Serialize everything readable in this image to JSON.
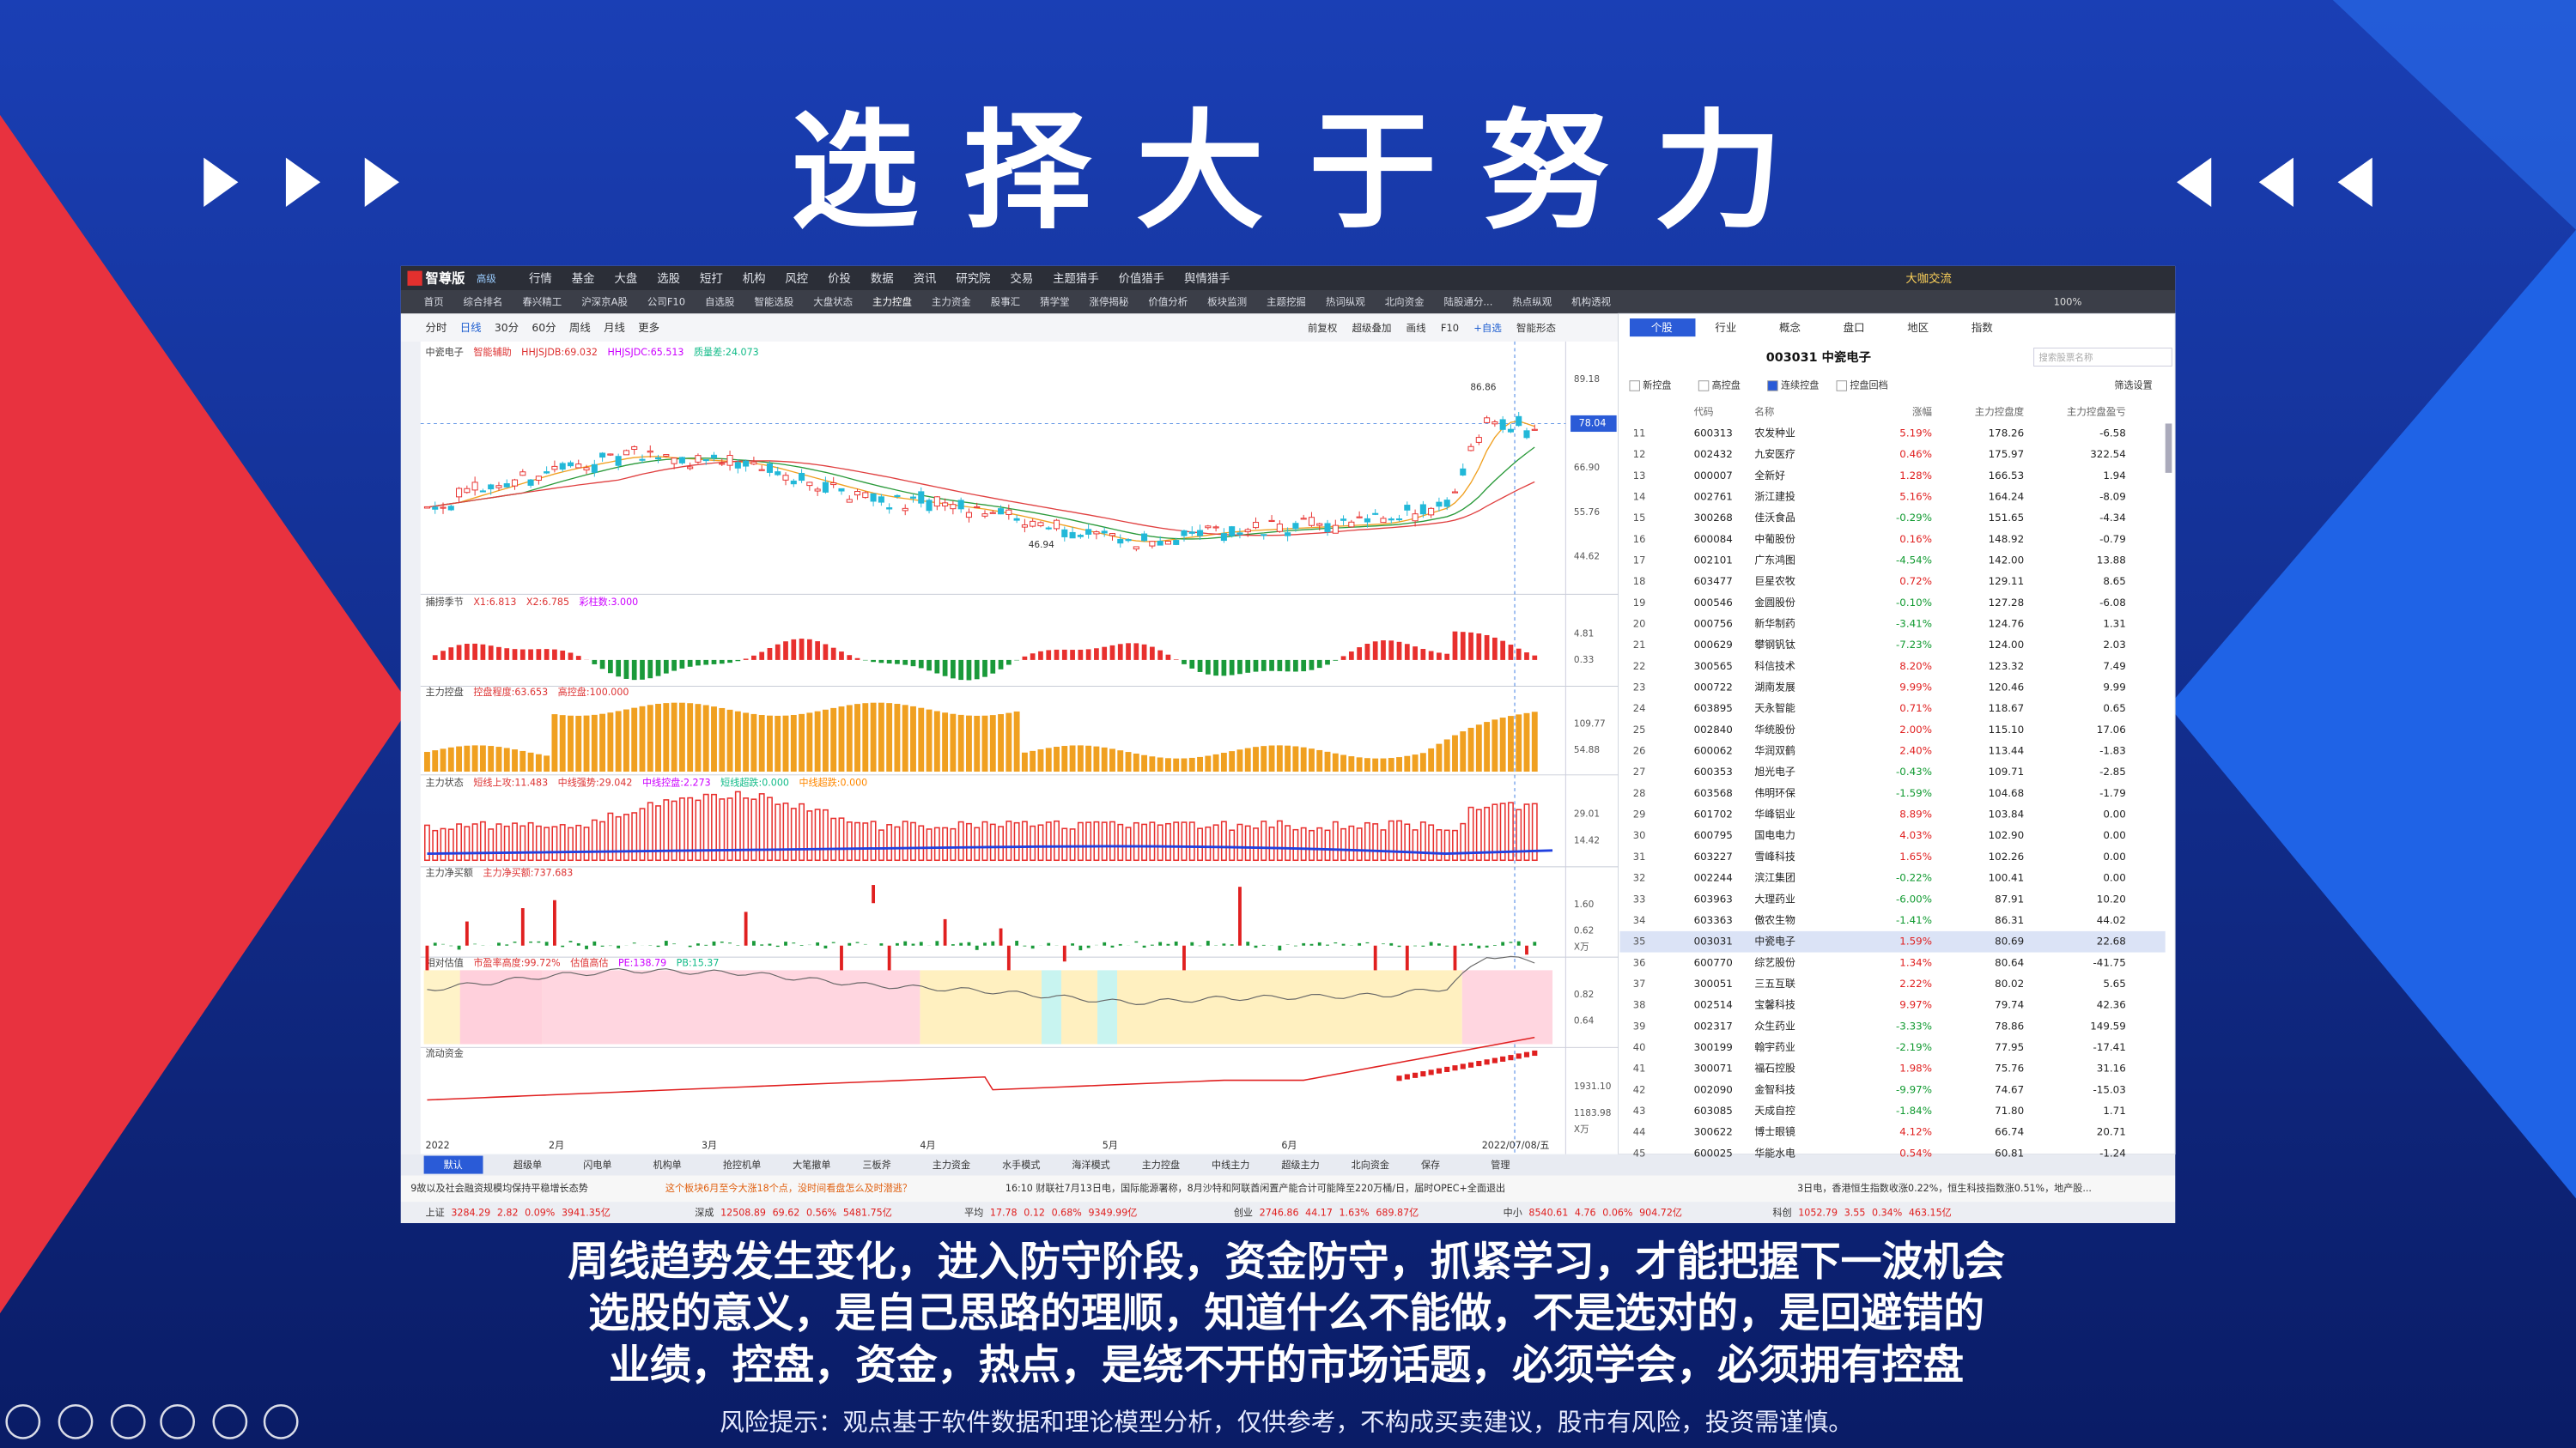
{
  "slide": {
    "title": "选 择 大 于 努 力",
    "captions": [
      "周线趋势发生变化，进入防守阶段，资金防守，抓紧学习，才能把握下一波机会",
      "选股的意义，是自己思路的理顺，知道什么不能做，不是选对的，是回避错的",
      "业绩，控盘，资金，热点，是绕不开的市场话题，必须学会，必须拥有控盘"
    ],
    "risk_notice": "风险提示：观点基于软件数据和理论模型分析，仅供参考，不构成买卖建议，股市有风险，投资需谨慎。"
  },
  "app": {
    "logo": "智尊版",
    "badge": "高级",
    "menu": [
      "行情",
      "基金",
      "大盘",
      "选股",
      "短打",
      "机构",
      "风控",
      "价投",
      "数据",
      "资讯",
      "研究院",
      "交易",
      "主题猎手",
      "价值猎手",
      "舆情猎手"
    ],
    "top_right": "大咖交流",
    "tabs": [
      "首页",
      "综合排名",
      "春兴精工",
      "沪深京A股",
      "公司F10",
      "自选股",
      "智能选股",
      "大盘状态",
      "主力控盘",
      "主力资金",
      "股事汇",
      "猜学堂",
      "涨停揭秘",
      "价值分析",
      "板块监测",
      "主题挖掘",
      "热词纵观",
      "北向资金",
      "陆股通分...",
      "热点纵观",
      "机构透视"
    ],
    "zoom": "100%"
  },
  "toolbar": {
    "periods": [
      "分时",
      "日线",
      "30分",
      "60分",
      "周线",
      "月线",
      "更多"
    ],
    "tools": [
      "前复权",
      "超级叠加",
      "画线",
      "F10",
      "+自选",
      "智能形态"
    ]
  },
  "chart": {
    "panels": [
      {
        "labels": [
          "中瓷电子",
          "智能辅助",
          "HHJSJDB:69.032",
          "HHJSJDC:65.513",
          "质量差:24.073"
        ],
        "axis": [
          "89.18",
          "78.04",
          "66.90",
          "55.76",
          "44.62"
        ]
      },
      {
        "labels": [
          "捕捞季节",
          "X1:6.813",
          "X2:6.785",
          "彩柱数:3.000"
        ],
        "axis": [
          "4.81",
          "0.33"
        ]
      },
      {
        "labels": [
          "主力控盘",
          "控盘程度:63.653",
          "高控盘:100.000"
        ],
        "axis": [
          "109.77",
          "54.88"
        ]
      },
      {
        "labels": [
          "主力状态",
          "短线上攻:11.483",
          "中线强势:29.042",
          "中线控盘:2.273",
          "短线超跌:0.000",
          "中线超跌:0.000"
        ],
        "axis": [
          "29.01",
          "14.42"
        ]
      },
      {
        "labels": [
          "主力净买额",
          "主力净买额:737.683"
        ],
        "axis": [
          "1.60",
          "0.62",
          "X万"
        ]
      },
      {
        "labels": [
          "相对估值",
          "市盈率高度:99.72%",
          "估值高估",
          "PE:138.79",
          "PB:15.37"
        ],
        "axis": [
          "0.82",
          "0.64"
        ]
      },
      {
        "labels": [
          "流动资金"
        ],
        "axis": [
          "1931.10",
          "1183.98",
          "X万"
        ]
      }
    ],
    "high_mark": "86.86",
    "low_mark": "46.94",
    "x_labels": [
      "2022",
      "2月",
      "3月",
      "4月",
      "5月",
      "6月",
      "2022/07/08/五"
    ],
    "bottom_tabs": [
      "默认",
      "超级单",
      "闪电单",
      "机构单",
      "抢控机单",
      "大笔撤单",
      "三板斧",
      "主力资金",
      "水手模式",
      "海洋模式",
      "主力控盘",
      "中线主力",
      "超级主力",
      "北向资金",
      "保存",
      "管理"
    ]
  },
  "stock_list": {
    "tabs": [
      "个股",
      "行业",
      "概念",
      "盘口",
      "地区",
      "指数"
    ],
    "title": "003031  中瓷电子",
    "search": "搜索股票名称",
    "filters": [
      "新控盘",
      "高控盘",
      "连续控盘",
      "控盘回档"
    ],
    "filter_settings": "筛选设置",
    "columns": [
      "代码",
      "名称",
      "涨幅",
      "主力控盘度",
      "主力控盘盈亏"
    ],
    "rows": [
      [
        11,
        "600313",
        "农发种业",
        "5.19%",
        "178.26",
        "-6.58"
      ],
      [
        12,
        "002432",
        "九安医疗",
        "0.46%",
        "175.97",
        "322.54"
      ],
      [
        13,
        "000007",
        "全新好",
        "1.28%",
        "166.53",
        "1.94"
      ],
      [
        14,
        "002761",
        "浙江建投",
        "5.16%",
        "164.24",
        "-8.09"
      ],
      [
        15,
        "300268",
        "佳沃食品",
        "-0.29%",
        "151.65",
        "-4.34"
      ],
      [
        16,
        "600084",
        "中葡股份",
        "0.16%",
        "148.92",
        "-0.79"
      ],
      [
        17,
        "002101",
        "广东鸿图",
        "-4.54%",
        "142.00",
        "13.88"
      ],
      [
        18,
        "603477",
        "巨星农牧",
        "0.72%",
        "129.11",
        "8.65"
      ],
      [
        19,
        "000546",
        "金圆股份",
        "-0.10%",
        "127.28",
        "-6.08"
      ],
      [
        20,
        "000756",
        "新华制药",
        "-3.41%",
        "124.76",
        "1.31"
      ],
      [
        21,
        "000629",
        "攀钢钒钛",
        "-7.23%",
        "124.00",
        "2.03"
      ],
      [
        22,
        "300565",
        "科信技术",
        "8.20%",
        "123.32",
        "7.49"
      ],
      [
        23,
        "000722",
        "湖南发展",
        "9.99%",
        "120.46",
        "9.99"
      ],
      [
        24,
        "603895",
        "天永智能",
        "0.71%",
        "118.67",
        "0.65"
      ],
      [
        25,
        "002840",
        "华统股份",
        "2.00%",
        "115.10",
        "17.06"
      ],
      [
        26,
        "600062",
        "华润双鹤",
        "2.40%",
        "113.44",
        "-1.83"
      ],
      [
        27,
        "600353",
        "旭光电子",
        "-0.43%",
        "109.71",
        "-2.85"
      ],
      [
        28,
        "603568",
        "伟明环保",
        "-1.59%",
        "104.68",
        "-1.79"
      ],
      [
        29,
        "601702",
        "华峰铝业",
        "8.89%",
        "103.84",
        "0.00"
      ],
      [
        30,
        "600795",
        "国电电力",
        "4.03%",
        "102.90",
        "0.00"
      ],
      [
        31,
        "603227",
        "雪峰科技",
        "1.65%",
        "102.26",
        "0.00"
      ],
      [
        32,
        "002244",
        "滨江集团",
        "-0.22%",
        "100.41",
        "0.00"
      ],
      [
        33,
        "603963",
        "大理药业",
        "-6.00%",
        "87.91",
        "10.20"
      ],
      [
        34,
        "603363",
        "傲农生物",
        "-1.41%",
        "86.31",
        "44.02"
      ],
      [
        35,
        "003031",
        "中瓷电子",
        "1.59%",
        "80.69",
        "22.68"
      ],
      [
        36,
        "600770",
        "综艺股份",
        "1.34%",
        "80.64",
        "-41.75"
      ],
      [
        37,
        "300051",
        "三五互联",
        "2.22%",
        "80.02",
        "5.65"
      ],
      [
        38,
        "002514",
        "宝馨科技",
        "9.97%",
        "79.74",
        "42.36"
      ],
      [
        39,
        "002317",
        "众生药业",
        "-3.33%",
        "78.86",
        "149.59"
      ],
      [
        40,
        "300199",
        "翰宇药业",
        "-2.19%",
        "77.95",
        "-17.41"
      ],
      [
        41,
        "300071",
        "福石控股",
        "1.98%",
        "75.76",
        "31.16"
      ],
      [
        42,
        "002090",
        "金智科技",
        "-9.97%",
        "74.67",
        "-15.03"
      ],
      [
        43,
        "603085",
        "天成自控",
        "-1.84%",
        "71.80",
        "1.71"
      ],
      [
        44,
        "300622",
        "博士眼镜",
        "4.12%",
        "66.74",
        "20.71"
      ],
      [
        45,
        "600025",
        "华能水电",
        "0.54%",
        "60.81",
        "-1.24"
      ]
    ]
  },
  "status": {
    "news": [
      "9故以及社会融资规模均保持平稳增长态势",
      "这个板块6月至今大涨18个点，没时间看盘怎么及时潜逃？",
      "16:10 财联社7月13日电，国际能源署称，8月沙特和阿联酋闲置产能合计可能降至220万桶/日，届时OPEC+全面退出",
      "3日电，香港恒生指数收涨0.22%，恒生科技指数涨0.51%，地产股..."
    ],
    "indices": [
      [
        "上证",
        "3284.29",
        "2.82",
        "0.09%",
        "3941.35亿"
      ],
      [
        "深成",
        "12508.89",
        "69.62",
        "0.56%",
        "5481.75亿"
      ],
      [
        "平均",
        "17.78",
        "0.12",
        "0.68%",
        "9349.99亿"
      ],
      [
        "创业",
        "2746.86",
        "44.17",
        "1.63%",
        "689.87亿"
      ],
      [
        "中小",
        "8540.61",
        "4.76",
        "0.06%",
        "904.72亿"
      ],
      [
        "科创",
        "1052.79",
        "3.55",
        "0.34%",
        "463.15亿"
      ]
    ]
  }
}
